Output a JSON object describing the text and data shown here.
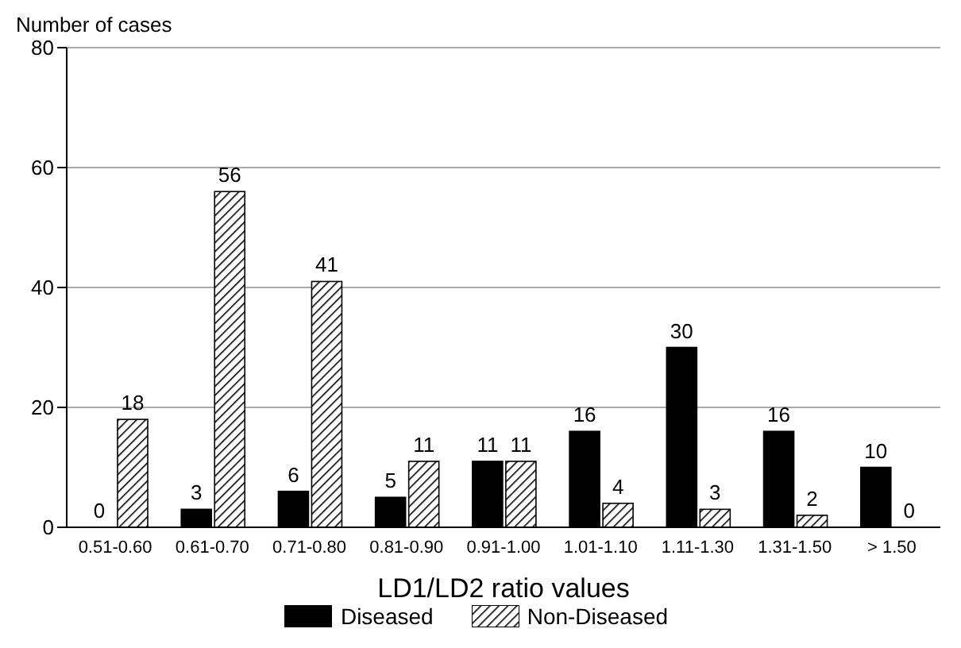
{
  "chart_data": {
    "type": "bar",
    "xlabel": "LD1/LD2 ratio values",
    "ylabel": "Number of cases",
    "categories": [
      "0.51-0.60",
      "0.61-0.70",
      "0.71-0.80",
      "0.81-0.90",
      "0.91-1.00",
      "1.01-1.10",
      "1.11-1.30",
      "1.31-1.50",
      "> 1.50"
    ],
    "series": [
      {
        "name": "Diseased",
        "color": "#000000",
        "values": [
          0,
          3,
          6,
          5,
          11,
          16,
          30,
          16,
          10
        ]
      },
      {
        "name": "Non-Diseased",
        "color": "#000000",
        "values": [
          18,
          56,
          41,
          11,
          11,
          4,
          3,
          2,
          0
        ]
      }
    ],
    "ylim": [
      0,
      80
    ],
    "yticks": [
      0,
      20,
      40,
      60,
      80
    ],
    "grid": "y",
    "legend": "bottom",
    "data_labels": true
  }
}
